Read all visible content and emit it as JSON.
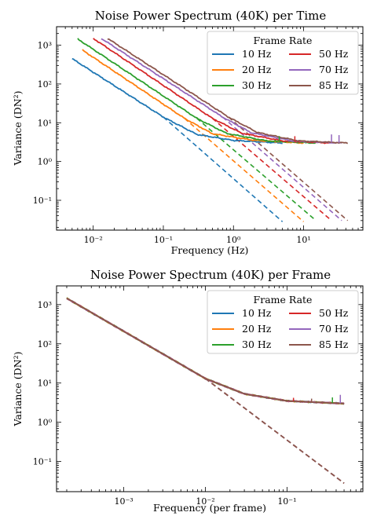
{
  "chart_data": [
    {
      "type": "line",
      "title": "Noise Power Spectrum (40K) per Time",
      "xlabel": "Frequency (Hz)",
      "ylabel": "Variance (DN²)",
      "xscale": "log",
      "yscale": "log",
      "xlim": [
        0.003,
        70
      ],
      "ylim": [
        0.017,
        3000
      ],
      "xticks": [
        0.01,
        0.1,
        1,
        10
      ],
      "xtick_labels": [
        "10⁻²",
        "10⁻¹",
        "10⁰",
        "10¹"
      ],
      "yticks": [
        0.1,
        1,
        10,
        100,
        1000
      ],
      "ytick_labels": [
        "10⁻¹",
        "10⁰",
        "10¹",
        "10²",
        "10³"
      ],
      "grid": false,
      "legend_title": "Frame Rate",
      "legend_position": "top-right",
      "legend_columns": 2,
      "series": [
        {
          "name": "10 Hz",
          "color": "#1f77b4",
          "rate": 10,
          "solid": [
            [
              0.005,
              450
            ],
            [
              0.1,
              14
            ],
            [
              0.3,
              5.0
            ],
            [
              1,
              3.5
            ],
            [
              5,
              3.0
            ]
          ],
          "dashed": [
            [
              0.1,
              14
            ],
            [
              5,
              0.028
            ]
          ]
        },
        {
          "name": "20 Hz",
          "color": "#ff7f0e",
          "rate": 20,
          "solid": [
            [
              0.007,
              750
            ],
            [
              0.2,
              13
            ],
            [
              0.5,
              5.2
            ],
            [
              2,
              3.5
            ],
            [
              10,
              3.0
            ]
          ],
          "dashed": [
            [
              0.2,
              13
            ],
            [
              10,
              0.028
            ]
          ]
        },
        {
          "name": "30 Hz",
          "color": "#2ca02c",
          "rate": 30,
          "solid": [
            [
              0.006,
              1450
            ],
            [
              0.3,
              13
            ],
            [
              0.8,
              5.3
            ],
            [
              3,
              3.4
            ],
            [
              15,
              3.0
            ]
          ],
          "dashed": [
            [
              0.3,
              13
            ],
            [
              15,
              0.03
            ]
          ]
        },
        {
          "name": "50 Hz",
          "color": "#d62728",
          "rate": 50,
          "solid": [
            [
              0.01,
              1500
            ],
            [
              0.5,
              13
            ],
            [
              1.3,
              5.4
            ],
            [
              5,
              3.4
            ],
            [
              25,
              3.0
            ]
          ],
          "dashed": [
            [
              0.5,
              13
            ],
            [
              25,
              0.03
            ]
          ]
        },
        {
          "name": "70 Hz",
          "color": "#9467bd",
          "rate": 70,
          "solid": [
            [
              0.013,
              1500
            ],
            [
              0.7,
              14
            ],
            [
              1.8,
              5.5
            ],
            [
              7,
              3.4
            ],
            [
              35,
              3.0
            ]
          ],
          "dashed": [
            [
              0.7,
              14
            ],
            [
              35,
              0.03
            ]
          ]
        },
        {
          "name": "85 Hz",
          "color": "#8c564b",
          "rate": 85,
          "solid": [
            [
              0.016,
              1500
            ],
            [
              0.85,
              14
            ],
            [
              2.2,
              5.6
            ],
            [
              8.5,
              3.4
            ],
            [
              42.5,
              3.0
            ]
          ],
          "dashed": [
            [
              0.85,
              14
            ],
            [
              42.5,
              0.03
            ]
          ]
        }
      ],
      "spikes": [
        {
          "series": 2,
          "x": 4.5,
          "y": 4.5
        },
        {
          "series": 3,
          "x": 7.5,
          "y": 4.5
        },
        {
          "series": 4,
          "x": 25,
          "y": 5.0
        },
        {
          "series": 4,
          "x": 32,
          "y": 4.8
        }
      ]
    },
    {
      "type": "line",
      "title": "Noise Power Spectrum (40K) per Frame",
      "xlabel": "Frequency (per frame)",
      "ylabel": "Variance (DN²)",
      "xscale": "log",
      "yscale": "log",
      "xlim": [
        0.00015,
        0.85
      ],
      "ylim": [
        0.017,
        3000
      ],
      "xticks": [
        0.001,
        0.01,
        0.1
      ],
      "xtick_labels": [
        "10⁻³",
        "10⁻²",
        "10⁻¹"
      ],
      "yticks": [
        0.1,
        1,
        10,
        100,
        1000
      ],
      "ytick_labels": [
        "10⁻¹",
        "10⁰",
        "10¹",
        "10²",
        "10³"
      ],
      "grid": false,
      "legend_title": "Frame Rate",
      "legend_position": "top-right",
      "legend_columns": 2,
      "series": [
        {
          "name": "10 Hz",
          "color": "#1f77b4",
          "solid": [
            [
              0.0002,
              1450
            ],
            [
              0.01,
              13
            ],
            [
              0.03,
              5.3
            ],
            [
              0.1,
              3.5
            ],
            [
              0.5,
              3.0
            ]
          ],
          "dashed": [
            [
              0.01,
              13
            ],
            [
              0.5,
              0.028
            ]
          ]
        },
        {
          "name": "20 Hz",
          "color": "#ff7f0e",
          "solid": [
            [
              0.0002,
              1450
            ],
            [
              0.01,
              13
            ],
            [
              0.03,
              5.3
            ],
            [
              0.1,
              3.5
            ],
            [
              0.5,
              3.0
            ]
          ],
          "dashed": [
            [
              0.01,
              13
            ],
            [
              0.5,
              0.028
            ]
          ]
        },
        {
          "name": "30 Hz",
          "color": "#2ca02c",
          "solid": [
            [
              0.0002,
              1450
            ],
            [
              0.01,
              13
            ],
            [
              0.03,
              5.3
            ],
            [
              0.1,
              3.5
            ],
            [
              0.5,
              3.0
            ]
          ],
          "dashed": [
            [
              0.01,
              13
            ],
            [
              0.5,
              0.028
            ]
          ]
        },
        {
          "name": "50 Hz",
          "color": "#d62728",
          "solid": [
            [
              0.0002,
              1450
            ],
            [
              0.01,
              13
            ],
            [
              0.03,
              5.3
            ],
            [
              0.1,
              3.5
            ],
            [
              0.5,
              3.0
            ]
          ],
          "dashed": [
            [
              0.01,
              13
            ],
            [
              0.5,
              0.028
            ]
          ]
        },
        {
          "name": "70 Hz",
          "color": "#9467bd",
          "solid": [
            [
              0.0002,
              1450
            ],
            [
              0.01,
              13
            ],
            [
              0.03,
              5.3
            ],
            [
              0.1,
              3.5
            ],
            [
              0.5,
              3.0
            ]
          ],
          "dashed": [
            [
              0.01,
              13
            ],
            [
              0.5,
              0.028
            ]
          ]
        },
        {
          "name": "85 Hz",
          "color": "#8c564b",
          "solid": [
            [
              0.0002,
              1450
            ],
            [
              0.01,
              13
            ],
            [
              0.03,
              5.3
            ],
            [
              0.1,
              3.5
            ],
            [
              0.5,
              3.0
            ]
          ],
          "dashed": [
            [
              0.01,
              13
            ],
            [
              0.5,
              0.028
            ]
          ]
        }
      ],
      "spikes": [
        {
          "series": 3,
          "x": 0.12,
          "y": 4.2
        },
        {
          "series": 2,
          "x": 0.36,
          "y": 4.3
        },
        {
          "series": 4,
          "x": 0.45,
          "y": 5.0
        },
        {
          "series": 5,
          "x": 0.2,
          "y": 4.0
        }
      ]
    }
  ]
}
